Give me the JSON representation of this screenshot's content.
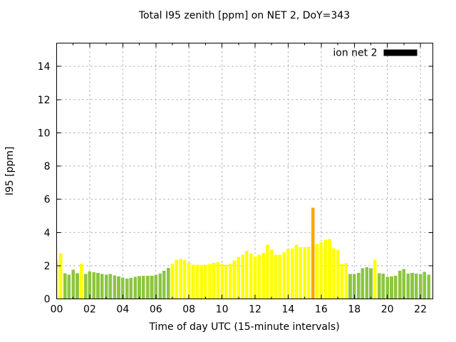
{
  "title": "Total I95 zenith [ppm] on NET 2, DoY=343",
  "legend": {
    "label": "ion net 2",
    "swatch_color": "#000000"
  },
  "chart_data": {
    "type": "bar",
    "title": "Total I95 zenith [ppm] on NET 2, DoY=343",
    "xlabel": "Time of day UTC (15-minute intervals)",
    "ylabel": "I95 [ppm]",
    "legend_label": "ion net 2",
    "start_time": "00:00",
    "interval_minutes": 15,
    "n_bars": 91,
    "x_tick_labels": [
      "00",
      "02",
      "04",
      "06",
      "08",
      "10",
      "12",
      "14",
      "16",
      "18",
      "20",
      "22"
    ],
    "x_tick_every_hours": 2,
    "y_tick_labels": [
      "0",
      "2",
      "4",
      "6",
      "8",
      "10",
      "12",
      "14"
    ],
    "ytick_step": 2,
    "ytick_max": 14,
    "ylim": [
      0,
      15.4
    ],
    "grid": true,
    "legend_position": "top-right",
    "values": [
      2.35,
      2.75,
      1.55,
      1.45,
      1.75,
      1.55,
      2.1,
      1.5,
      1.65,
      1.6,
      1.57,
      1.5,
      1.46,
      1.5,
      1.42,
      1.36,
      1.28,
      1.22,
      1.26,
      1.34,
      1.37,
      1.4,
      1.4,
      1.4,
      1.44,
      1.53,
      1.7,
      1.87,
      2.1,
      2.35,
      2.4,
      2.34,
      2.17,
      2.06,
      2.06,
      2.03,
      2.06,
      2.1,
      2.17,
      2.2,
      2.1,
      2.06,
      2.13,
      2.31,
      2.53,
      2.67,
      2.9,
      2.75,
      2.55,
      2.65,
      2.77,
      3.25,
      2.95,
      2.67,
      2.67,
      2.81,
      3.0,
      3.05,
      3.25,
      3.1,
      3.1,
      3.13,
      5.5,
      3.3,
      3.4,
      3.55,
      3.6,
      3.05,
      2.95,
      2.1,
      2.15,
      1.5,
      1.5,
      1.57,
      1.85,
      1.9,
      1.85,
      2.35,
      1.55,
      1.53,
      1.33,
      1.35,
      1.4,
      1.7,
      1.8,
      1.53,
      1.57,
      1.53,
      1.5,
      1.64,
      1.46
    ],
    "colors": {
      "low_green": "#8CC63F",
      "mid_yellow": "#FFFF00",
      "high_orange": "#FFA500"
    },
    "color_thresholds": [
      2,
      4
    ],
    "grid_color": "#9e9e9e",
    "axis_color": "#000000"
  }
}
